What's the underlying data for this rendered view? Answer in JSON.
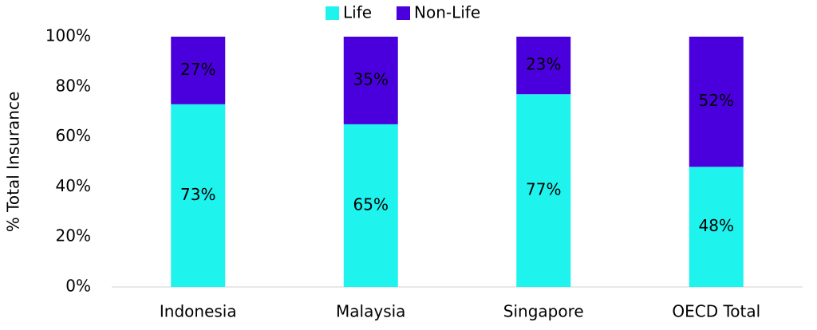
{
  "chart_data": {
    "type": "stacked-bar",
    "y_label": "% Total Insurance",
    "categories": [
      "Indonesia",
      "Malaysia",
      "Singapore",
      "OECD Total"
    ],
    "series": [
      {
        "name": "Life",
        "color": "#1ff3ee",
        "values": [
          73,
          65,
          77,
          48
        ],
        "value_labels": [
          "73%",
          "65%",
          "77%",
          "48%"
        ],
        "label_color": "#000000"
      },
      {
        "name": "Non-Life",
        "color": "#4a00dd",
        "values": [
          27,
          35,
          23,
          52
        ],
        "value_labels": [
          "27%",
          "35%",
          "23%",
          "52%"
        ],
        "label_color": "#ffffff"
      }
    ],
    "ylim": [
      0,
      100
    ],
    "yticks": [
      {
        "value": 0,
        "label": "0%"
      },
      {
        "value": 20,
        "label": "20%"
      },
      {
        "value": 40,
        "label": "40%"
      },
      {
        "value": 60,
        "label": "60%"
      },
      {
        "value": 80,
        "label": "80%"
      },
      {
        "value": 100,
        "label": "100%"
      }
    ],
    "grid": false,
    "legend": "top"
  }
}
